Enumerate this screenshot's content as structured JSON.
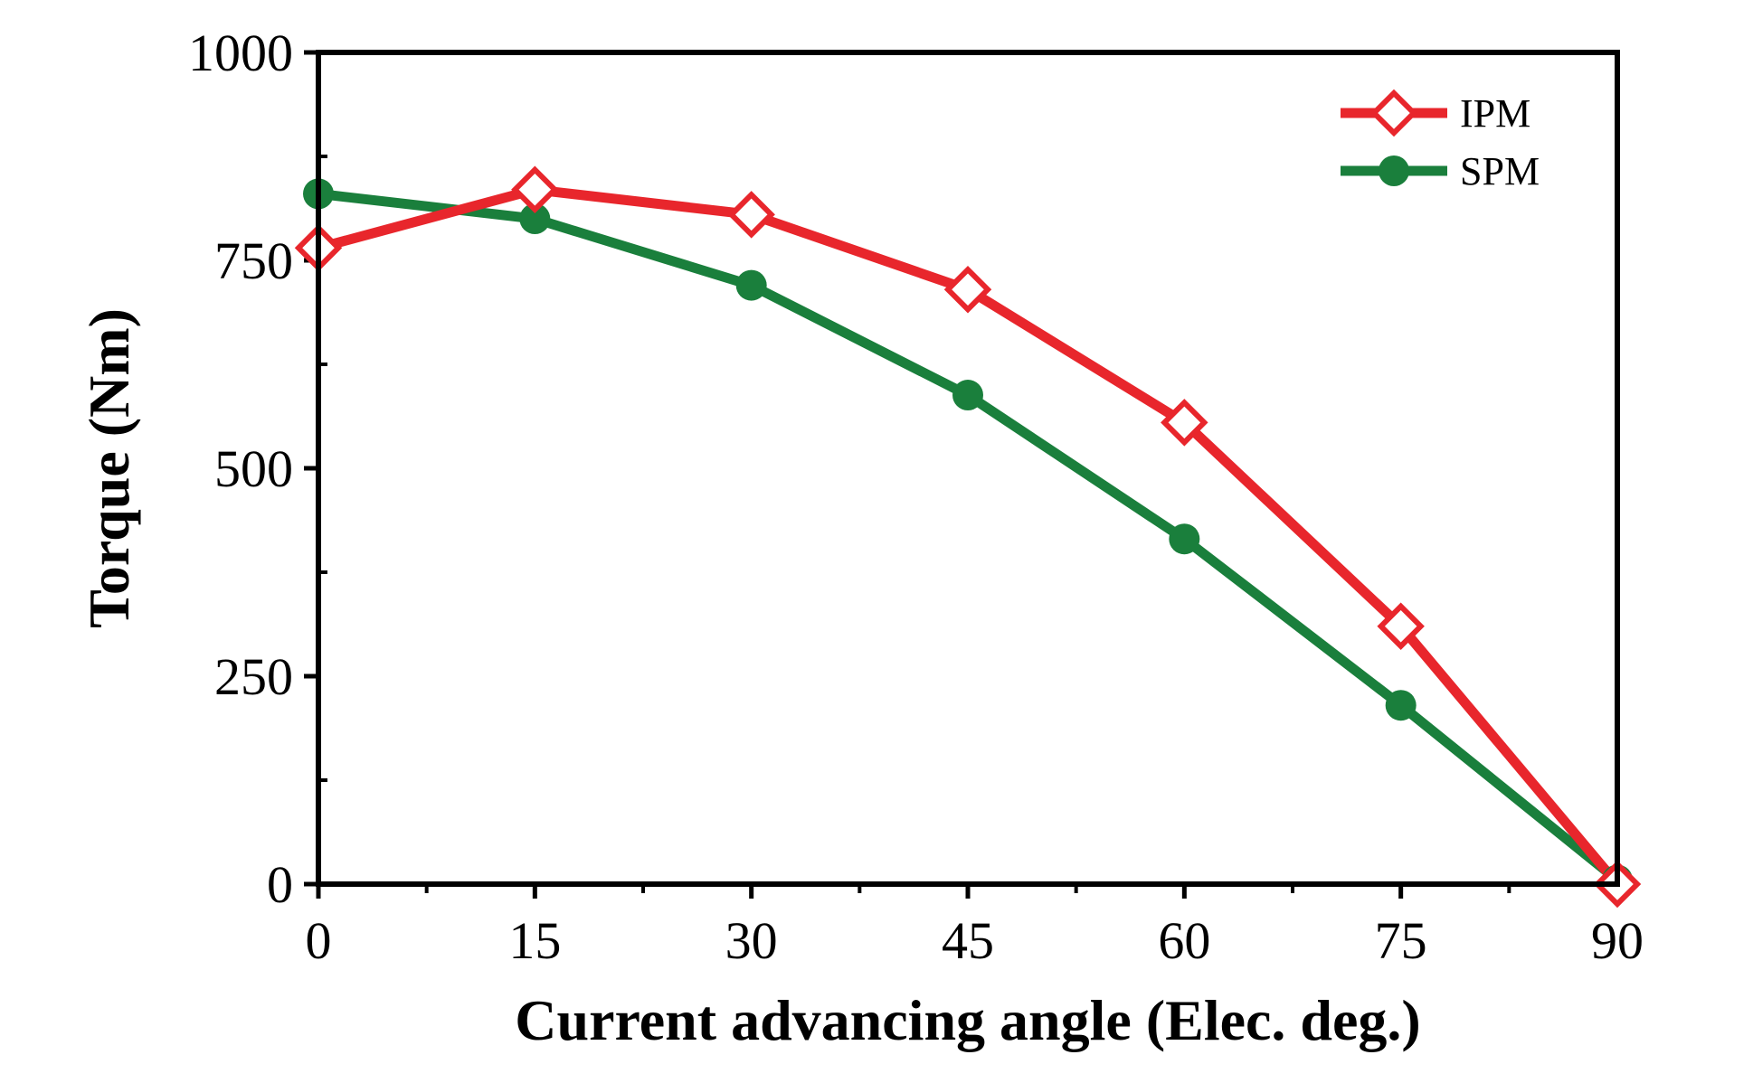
{
  "chart_data": {
    "type": "line",
    "xlabel": "Current advancing angle (Elec. deg.)",
    "ylabel": "Torque (Nm)",
    "xlim": [
      0,
      90
    ],
    "ylim": [
      0,
      1000
    ],
    "xticks": [
      0,
      15,
      30,
      45,
      60,
      75,
      90
    ],
    "yticks": [
      0,
      250,
      500,
      750,
      1000
    ],
    "x": [
      0,
      15,
      30,
      45,
      60,
      75,
      90
    ],
    "grid": false,
    "legend_position": "top-right",
    "series": [
      {
        "name": "IPM",
        "values": [
          765,
          835,
          805,
          715,
          555,
          310,
          0
        ],
        "color": "#e8262c",
        "marker": "open-diamond"
      },
      {
        "name": "SPM",
        "values": [
          830,
          800,
          720,
          588,
          415,
          215,
          5
        ],
        "color": "#1a7f3c",
        "marker": "filled-circle"
      }
    ]
  }
}
